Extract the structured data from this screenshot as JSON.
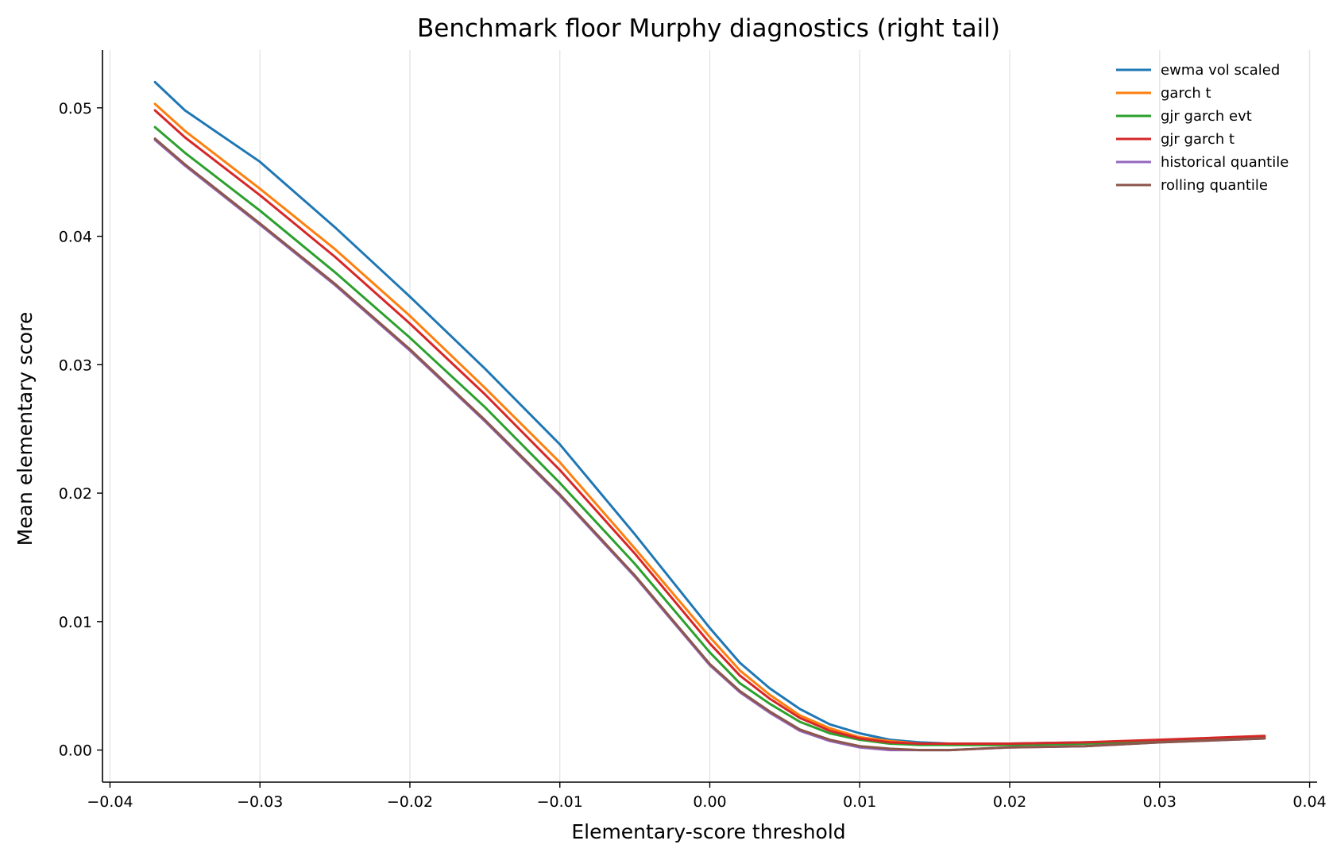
{
  "chart_data": {
    "type": "line",
    "title": "Benchmark floor Murphy diagnostics (right tail)",
    "xlabel": "Elementary-score threshold",
    "ylabel": "Mean elementary score",
    "xlim": [
      -0.0405,
      0.0405
    ],
    "ylim": [
      -0.0025,
      0.0545
    ],
    "xticks": [
      -0.04,
      -0.03,
      -0.02,
      -0.01,
      0.0,
      0.01,
      0.02,
      0.03,
      0.04
    ],
    "xtick_labels": [
      "−0.04",
      "−0.03",
      "−0.02",
      "−0.01",
      "0.00",
      "0.01",
      "0.02",
      "0.03",
      "0.04"
    ],
    "yticks": [
      0.0,
      0.01,
      0.02,
      0.03,
      0.04,
      0.05
    ],
    "ytick_labels": [
      "0.00",
      "0.01",
      "0.02",
      "0.03",
      "0.04",
      "0.05"
    ],
    "grid": "vertical",
    "legend": "top-right",
    "series": [
      {
        "name": "ewma vol scaled",
        "color": "#1f77b4",
        "x": [
          -0.037,
          -0.035,
          -0.03,
          -0.025,
          -0.02,
          -0.015,
          -0.01,
          -0.005,
          0.0,
          0.002,
          0.004,
          0.006,
          0.008,
          0.01,
          0.012,
          0.014,
          0.016,
          0.018,
          0.02,
          0.025,
          0.03,
          0.037
        ],
        "y": [
          0.052,
          0.0498,
          0.0458,
          0.0407,
          0.0353,
          0.0297,
          0.0238,
          0.0168,
          0.0095,
          0.0068,
          0.0048,
          0.0032,
          0.002,
          0.0013,
          0.0008,
          0.0006,
          0.0005,
          0.0005,
          0.0005,
          0.0006,
          0.0007,
          0.001
        ]
      },
      {
        "name": "garch t",
        "color": "#ff7f0e",
        "x": [
          -0.037,
          -0.035,
          -0.03,
          -0.025,
          -0.02,
          -0.015,
          -0.01,
          -0.005,
          0.0,
          0.002,
          0.004,
          0.006,
          0.008,
          0.01,
          0.012,
          0.014,
          0.016,
          0.018,
          0.02,
          0.025,
          0.03,
          0.037
        ],
        "y": [
          0.0503,
          0.0482,
          0.0437,
          0.039,
          0.0338,
          0.0282,
          0.0224,
          0.0157,
          0.0088,
          0.0062,
          0.0043,
          0.0027,
          0.0017,
          0.001,
          0.0007,
          0.0005,
          0.0004,
          0.0004,
          0.0004,
          0.0005,
          0.0007,
          0.001
        ]
      },
      {
        "name": "gjr garch evt",
        "color": "#2ca02c",
        "x": [
          -0.037,
          -0.035,
          -0.03,
          -0.025,
          -0.02,
          -0.015,
          -0.01,
          -0.005,
          0.0,
          0.002,
          0.004,
          0.006,
          0.008,
          0.01,
          0.012,
          0.014,
          0.016,
          0.018,
          0.02,
          0.025,
          0.03,
          0.037
        ],
        "y": [
          0.0485,
          0.0465,
          0.042,
          0.0372,
          0.0321,
          0.0267,
          0.0208,
          0.0145,
          0.0076,
          0.0052,
          0.0036,
          0.0022,
          0.0013,
          0.0008,
          0.0005,
          0.0004,
          0.0004,
          0.0004,
          0.0004,
          0.0005,
          0.0007,
          0.001
        ]
      },
      {
        "name": "gjr garch t",
        "color": "#d62728",
        "x": [
          -0.037,
          -0.035,
          -0.03,
          -0.025,
          -0.02,
          -0.015,
          -0.01,
          -0.005,
          0.0,
          0.002,
          0.004,
          0.006,
          0.008,
          0.01,
          0.012,
          0.014,
          0.016,
          0.018,
          0.02,
          0.025,
          0.03,
          0.037
        ],
        "y": [
          0.0498,
          0.0477,
          0.0432,
          0.0384,
          0.0332,
          0.0277,
          0.0218,
          0.0153,
          0.0083,
          0.0058,
          0.004,
          0.0025,
          0.0015,
          0.0009,
          0.0006,
          0.0005,
          0.0005,
          0.0005,
          0.0005,
          0.0006,
          0.0008,
          0.0011
        ]
      },
      {
        "name": "historical quantile",
        "color": "#9467bd",
        "x": [
          -0.037,
          -0.035,
          -0.03,
          -0.025,
          -0.02,
          -0.015,
          -0.01,
          -0.005,
          0.0,
          0.002,
          0.004,
          0.006,
          0.008,
          0.01,
          0.012,
          0.014,
          0.016,
          0.018,
          0.02,
          0.025,
          0.03,
          0.037
        ],
        "y": [
          0.0475,
          0.0455,
          0.0409,
          0.0362,
          0.0311,
          0.0256,
          0.0198,
          0.0135,
          0.0066,
          0.0045,
          0.0029,
          0.0015,
          0.0007,
          0.0002,
          0.0,
          0.0,
          0.0,
          0.0001,
          0.0002,
          0.0003,
          0.0006,
          0.0009
        ]
      },
      {
        "name": "rolling quantile",
        "color": "#8c564b",
        "x": [
          -0.037,
          -0.035,
          -0.03,
          -0.025,
          -0.02,
          -0.015,
          -0.01,
          -0.005,
          0.0,
          0.002,
          0.004,
          0.006,
          0.008,
          0.01,
          0.012,
          0.014,
          0.016,
          0.018,
          0.02,
          0.025,
          0.03,
          0.037
        ],
        "y": [
          0.0476,
          0.0456,
          0.041,
          0.0363,
          0.0312,
          0.0257,
          0.0199,
          0.0136,
          0.0067,
          0.0046,
          0.003,
          0.0016,
          0.0008,
          0.0003,
          0.0001,
          0.0,
          0.0,
          0.0001,
          0.0002,
          0.0003,
          0.0006,
          0.0009
        ]
      }
    ]
  }
}
